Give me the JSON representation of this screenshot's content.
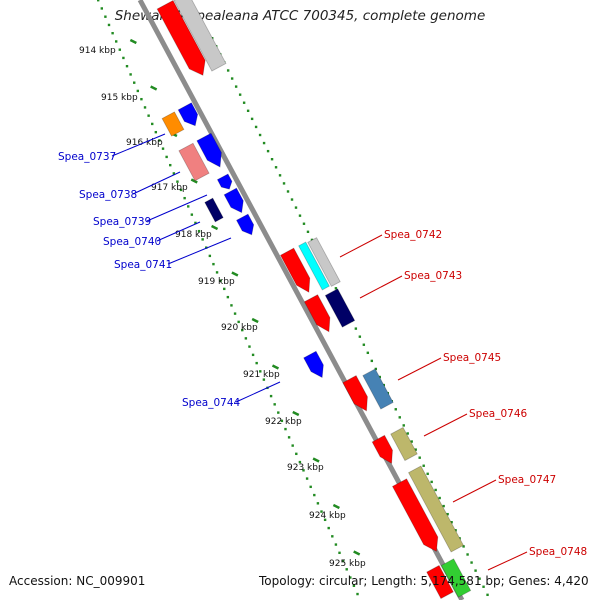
{
  "title": "Shewanella pealeana ATCC 700345, complete genome",
  "footer": {
    "accession": "Accession: NC_009901",
    "summary": "Topology: circular; Length: 5,174,581 bp; Genes: 4,420"
  },
  "kbp_labels": [
    "914 kbp",
    "915 kbp",
    "916 kbp",
    "917 kbp",
    "918 kbp",
    "919 kbp",
    "920 kbp",
    "921 kbp",
    "922 kbp",
    "923 kbp",
    "924 kbp",
    "925 kbp"
  ],
  "left_genes": [
    "Spea_0737",
    "Spea_0738",
    "Spea_0739",
    "Spea_0740",
    "Spea_0741",
    "Spea_0744"
  ],
  "right_genes": [
    "Spea_0742",
    "Spea_0743",
    "Spea_0745",
    "Spea_0746",
    "Spea_0747",
    "Spea_0748"
  ],
  "colors": {
    "backbone": "#8c8c8c",
    "ticks": "#228b22",
    "left_label": "#0000cc",
    "right_label": "#cc0000",
    "red": "#ff0000",
    "blue": "#0000ff",
    "navy": "#000066",
    "pink": "#f08080",
    "orange": "#ff8c00",
    "grey": "#c8c8c8",
    "steel": "#4682b4",
    "khaki": "#bdb76b",
    "green": "#32cd32",
    "cyan": "#00ffff"
  }
}
